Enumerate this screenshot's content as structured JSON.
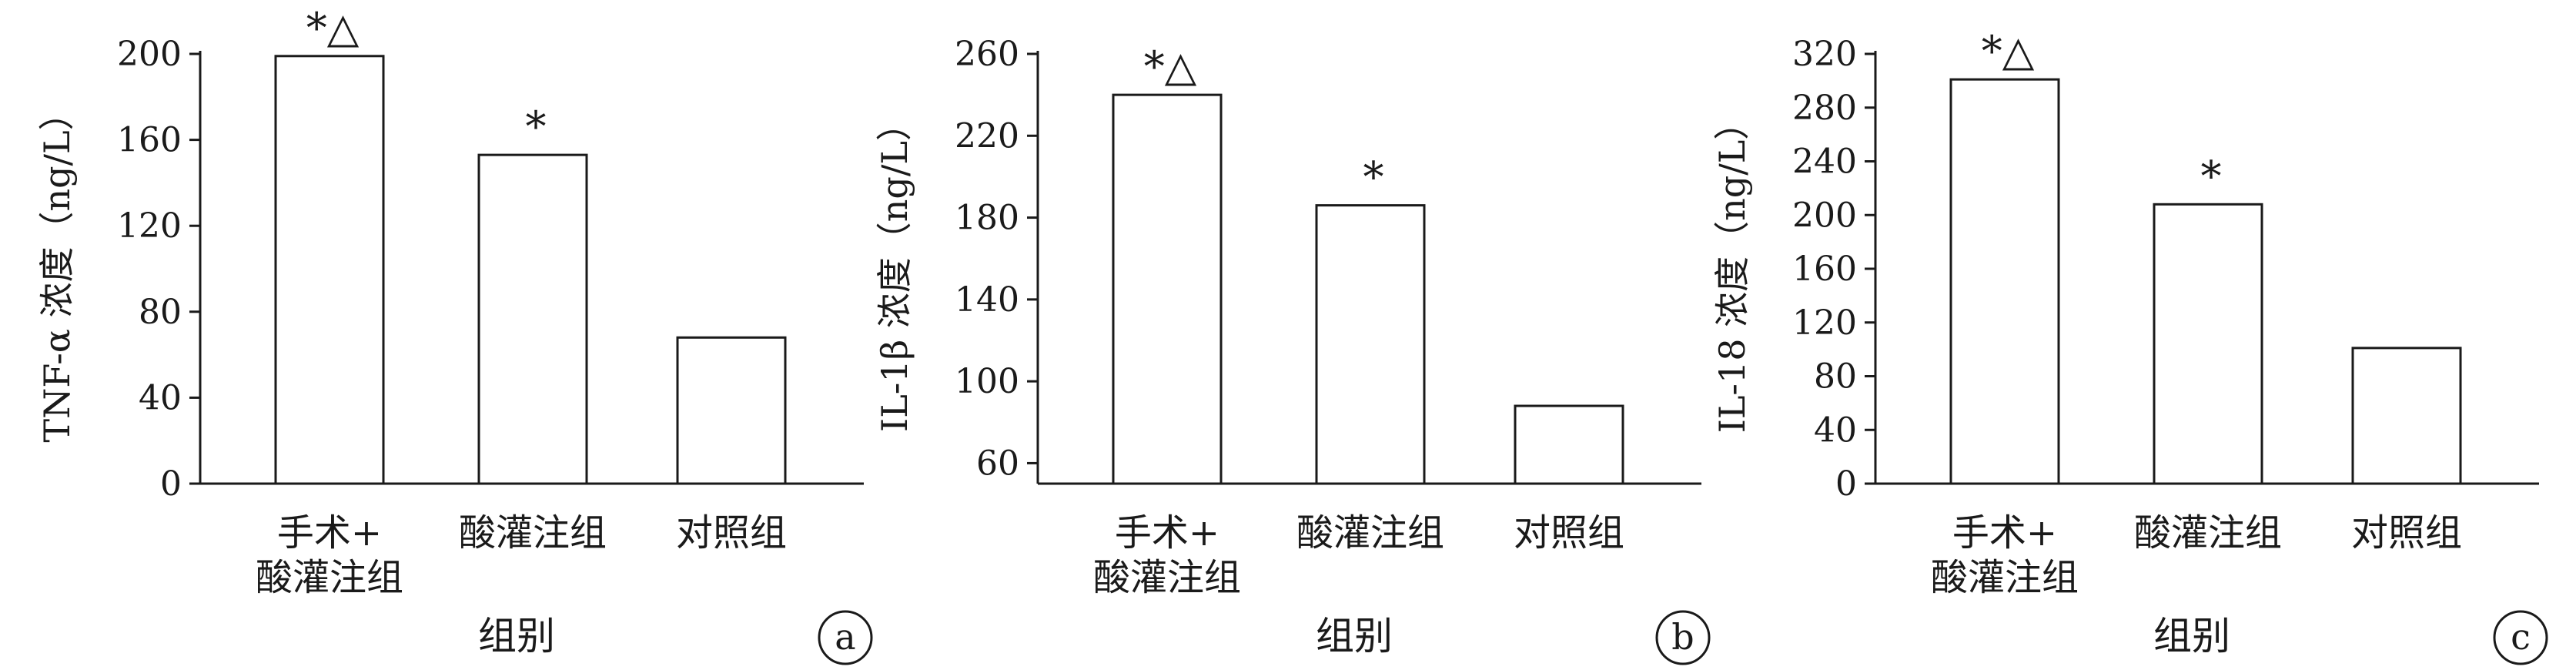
{
  "chart_data": [
    {
      "type": "bar",
      "panel_label": "a",
      "ylabel": "TNF-α 浓度（ng/L）",
      "xlabel": "组别",
      "ylim": [
        0,
        200
      ],
      "yticks": [
        0,
        40,
        80,
        120,
        160,
        200
      ],
      "categories": [
        [
          "手术+",
          "酸灌注组"
        ],
        [
          "酸灌注组"
        ],
        [
          "对照组"
        ]
      ],
      "values": [
        199,
        153,
        68
      ],
      "markers": [
        "*△",
        "*",
        ""
      ],
      "grid": false
    },
    {
      "type": "bar",
      "panel_label": "b",
      "ylabel": "IL-1β 浓度（ng/L）",
      "xlabel": "组别",
      "ylim": [
        50,
        260
      ],
      "yticks": [
        60,
        100,
        140,
        180,
        220,
        260
      ],
      "categories": [
        [
          "手术+",
          "酸灌注组"
        ],
        [
          "酸灌注组"
        ],
        [
          "对照组"
        ]
      ],
      "values": [
        240,
        186,
        88
      ],
      "markers": [
        "*△",
        "*",
        ""
      ],
      "grid": false
    },
    {
      "type": "bar",
      "panel_label": "c",
      "ylabel": "IL-18 浓度（ng/L）",
      "xlabel": "组别",
      "ylim": [
        0,
        320
      ],
      "yticks": [
        0,
        40,
        80,
        120,
        160,
        200,
        240,
        280,
        320
      ],
      "categories": [
        [
          "手术+",
          "酸灌注组"
        ],
        [
          "酸灌注组"
        ],
        [
          "对照组"
        ]
      ],
      "values": [
        301,
        208,
        101
      ],
      "markers": [
        "*△",
        "*",
        ""
      ],
      "grid": false
    }
  ]
}
